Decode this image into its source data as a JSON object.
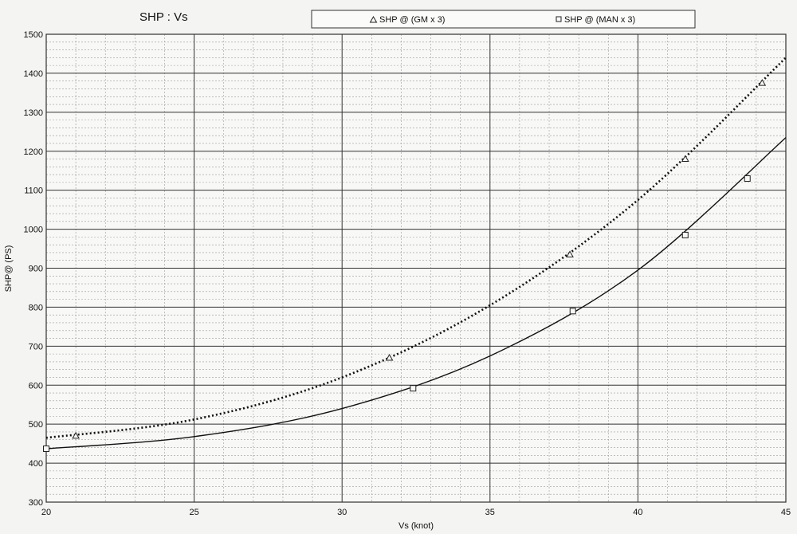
{
  "chart_data": {
    "type": "scatter",
    "title": "SHP : Vs",
    "xlabel": "Vs (knot)",
    "ylabel": "SHP@ (PS)",
    "xlim": [
      20,
      45
    ],
    "ylim": [
      300,
      1500
    ],
    "x_ticks": [
      "20",
      "25",
      "30",
      "35",
      "40",
      "45"
    ],
    "y_ticks": [
      "300",
      "400",
      "500",
      "600",
      "700",
      "800",
      "900",
      "1000",
      "1100",
      "1200",
      "1300",
      "1400",
      "1500"
    ],
    "grid": true,
    "legend_position": "top",
    "series": [
      {
        "name": "SHP @ (GM x 3)",
        "marker": "triangle",
        "trendline": "dotted",
        "points": [
          [
            21.0,
            470
          ],
          [
            31.6,
            670
          ],
          [
            37.7,
            935
          ],
          [
            41.6,
            1180
          ],
          [
            44.2,
            1375
          ]
        ],
        "trend": [
          [
            20,
            465
          ],
          [
            25,
            512
          ],
          [
            30,
            620
          ],
          [
            35,
            805
          ],
          [
            40,
            1075
          ],
          [
            45,
            1440
          ]
        ]
      },
      {
        "name": "SHP @ (MAN x 3)",
        "marker": "square",
        "trendline": "solid",
        "points": [
          [
            20.0,
            437
          ],
          [
            32.4,
            592
          ],
          [
            37.8,
            790
          ],
          [
            41.6,
            985
          ],
          [
            43.7,
            1130
          ]
        ],
        "trend": [
          [
            20,
            437
          ],
          [
            25,
            468
          ],
          [
            30,
            540
          ],
          [
            35,
            675
          ],
          [
            40,
            895
          ],
          [
            45,
            1235
          ]
        ]
      }
    ]
  }
}
